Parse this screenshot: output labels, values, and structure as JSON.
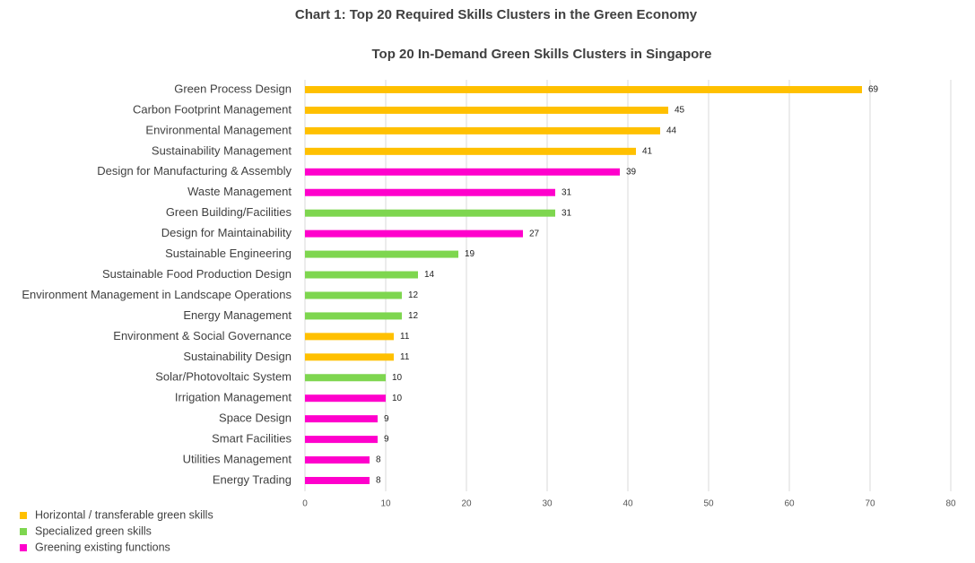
{
  "chart_data": {
    "type": "bar",
    "orientation": "horizontal",
    "title": "Chart 1: Top 20 Required Skills Clusters in the Green Economy",
    "subtitle": "Top 20 In-Demand Green Skills Clusters in Singapore",
    "categories": [
      "Green Process Design",
      "Carbon Footprint Management",
      "Environmental Management",
      "Sustainability Management",
      "Design for Manufacturing & Assembly",
      "Waste Management",
      "Green Building/Facilities",
      "Design for Maintainability",
      "Sustainable Engineering",
      "Sustainable Food Production Design",
      "Environment Management in Landscape Operations",
      "Energy Management",
      "Environment & Social Governance",
      "Sustainability Design",
      "Solar/Photovoltaic System",
      "Irrigation Management",
      "Space Design",
      "Smart Facilities",
      "Utilities Management",
      "Energy Trading"
    ],
    "series": [
      {
        "name": "Horizontal / transferable green skills",
        "color": "#ffc000",
        "values": [
          69,
          45,
          44,
          41,
          null,
          null,
          null,
          null,
          null,
          null,
          null,
          null,
          11,
          11,
          null,
          null,
          null,
          null,
          null,
          null
        ]
      },
      {
        "name": "Specialized green skills",
        "color": "#7ed64f",
        "values": [
          null,
          null,
          null,
          null,
          null,
          null,
          31,
          null,
          19,
          14,
          12,
          12,
          null,
          null,
          10,
          null,
          null,
          null,
          null,
          null
        ]
      },
      {
        "name": "Greening existing functions",
        "color": "#ff00cc",
        "values": [
          null,
          null,
          null,
          null,
          39,
          31,
          null,
          27,
          null,
          null,
          null,
          null,
          null,
          null,
          null,
          10,
          9,
          9,
          8,
          8
        ]
      }
    ],
    "xlim": [
      0,
      80
    ],
    "xticks": [
      0,
      10,
      20,
      30,
      40,
      50,
      60,
      70,
      80
    ],
    "grid": true,
    "legend": "bottom-left"
  }
}
